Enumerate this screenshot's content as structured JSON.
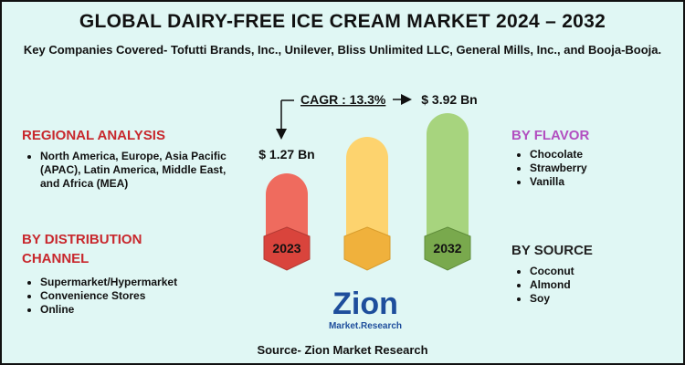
{
  "title": "GLOBAL DAIRY-FREE ICE CREAM MARKET 2024 – 2032",
  "subtitle": "Key Companies Covered- Tofutti Brands, Inc., Unilever, Bliss Unlimited LLC, General Mills, Inc., and Booja-Booja.",
  "cagr": "CAGR : 13.3%",
  "start_value": "$ 1.27 Bn",
  "end_value": "$ 3.92 Bn",
  "start_year": "2023",
  "end_year": "2032",
  "regional": {
    "heading": "REGIONAL ANALYSIS",
    "items": [
      "North America, Europe, Asia Pacific (APAC), Latin America, Middle East, and Africa (MEA)"
    ]
  },
  "distribution": {
    "heading": "BY DISTRIBUTION CHANNEL",
    "items": [
      "Supermarket/Hypermarket",
      "Convenience Stores",
      "Online"
    ]
  },
  "flavor": {
    "heading": "BY FLAVOR",
    "items": [
      "Chocolate",
      "Strawberry",
      "Vanilla"
    ]
  },
  "by_source": {
    "heading": "BY SOURCE",
    "items": [
      "Coconut",
      "Almond",
      "Soy"
    ]
  },
  "logo": {
    "name": "Zion",
    "tagline": "Market.Research"
  },
  "source": "Source- Zion Market Research"
}
